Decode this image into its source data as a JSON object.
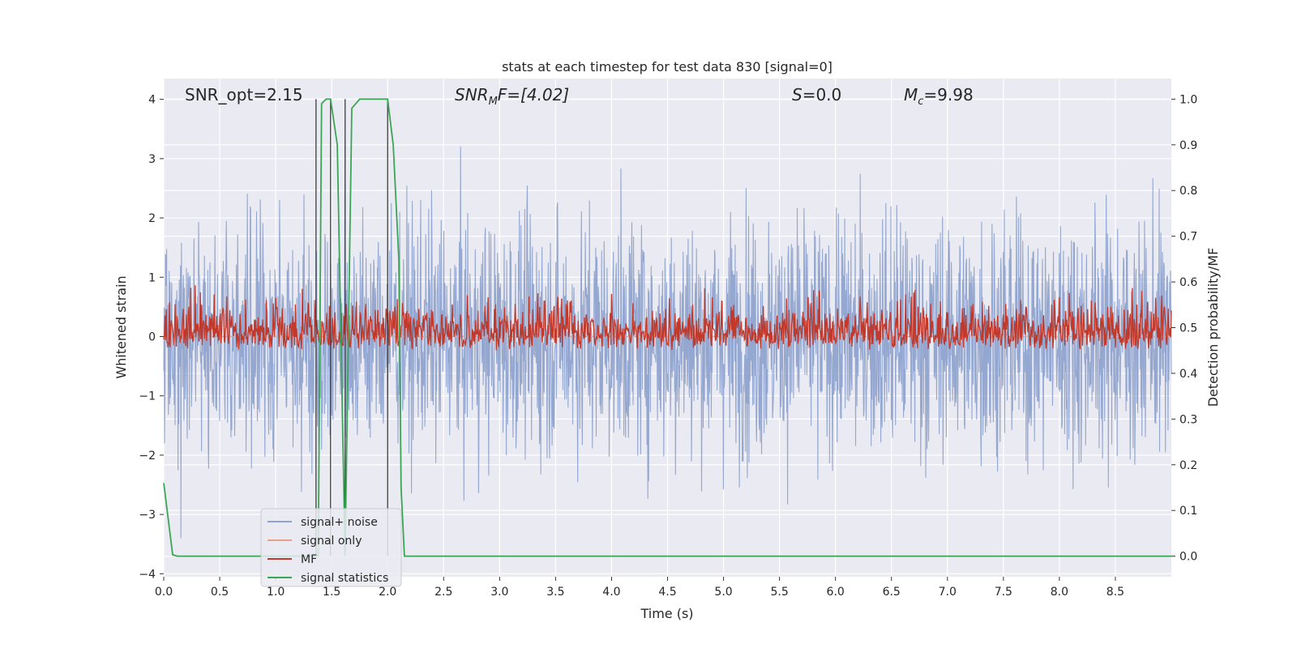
{
  "chart_data": {
    "type": "line",
    "title": "stats at each timestep for test data 830 [signal=0]",
    "xlabel": "Time (s)",
    "ylabel_left": "Whitened strain",
    "ylabel_right": "Detection probability/MF",
    "xlim": [
      0.0,
      9.0
    ],
    "ylim_left": [
      -4.05,
      4.35
    ],
    "ylim_right": [
      -0.045,
      1.045
    ],
    "x_ticks": [
      "0.0",
      "0.5",
      "1.0",
      "1.5",
      "2.0",
      "2.5",
      "3.0",
      "3.5",
      "4.0",
      "4.5",
      "5.0",
      "5.5",
      "6.0",
      "6.5",
      "7.0",
      "7.5",
      "8.0",
      "8.5"
    ],
    "y_ticks_left": [
      "−4",
      "−3",
      "−2",
      "−1",
      "0",
      "1",
      "2",
      "3",
      "4"
    ],
    "y_ticks_right": [
      "0.0",
      "0.1",
      "0.2",
      "0.3",
      "0.4",
      "0.5",
      "0.6",
      "0.7",
      "0.8",
      "0.9",
      "1.0"
    ],
    "grid": true,
    "legend_position": "lower-left",
    "annotations": {
      "snr_opt": "SNR_opt=2.15",
      "snr_mf_main": "SNR",
      "snr_mf_sub": "M",
      "snr_mf_rest": "F=[4.02]",
      "s_italic": "S",
      "s_rest": "=0.0",
      "mc_main": "M",
      "mc_sub": "c",
      "mc_rest": "=9.98"
    },
    "series": [
      {
        "name": "signal+ noise",
        "color": "#8fa3ce",
        "axis": "left",
        "description_values": "noise time series, amplitude roughly within [-3.7, 4.0]",
        "x_range": [
          0.0,
          9.0
        ],
        "approx_max": 3.95,
        "approx_min": -3.7
      },
      {
        "name": "signal only",
        "color": "#e8a088",
        "axis": "left",
        "x": [
          0.0,
          9.0
        ],
        "y": [
          0.0,
          0.0
        ]
      },
      {
        "name": "MF",
        "color": "#c0392b",
        "axis": "right",
        "x_range": [
          0.0,
          9.0
        ],
        "value_range": [
          0.45,
          0.63
        ]
      },
      {
        "name": "signal statistics",
        "color": "#3aa655",
        "axis": "right",
        "x": [
          0.0,
          0.08,
          0.12,
          1.35,
          1.38,
          1.41,
          1.45,
          1.49,
          1.55,
          1.62,
          1.68,
          1.75,
          1.95,
          2.0,
          2.05,
          2.1,
          2.12,
          2.15,
          9.0
        ],
        "y": [
          0.16,
          0.003,
          0.0,
          0.0,
          0.0,
          0.99,
          1.0,
          1.0,
          0.9,
          0.0,
          0.98,
          1.0,
          1.0,
          1.0,
          0.9,
          0.65,
          0.15,
          0.0,
          0.0
        ]
      }
    ],
    "vertical_lines_x": [
      1.36,
      1.49,
      1.62,
      2.0
    ],
    "vertical_lines_color": "#3c3c3c"
  }
}
